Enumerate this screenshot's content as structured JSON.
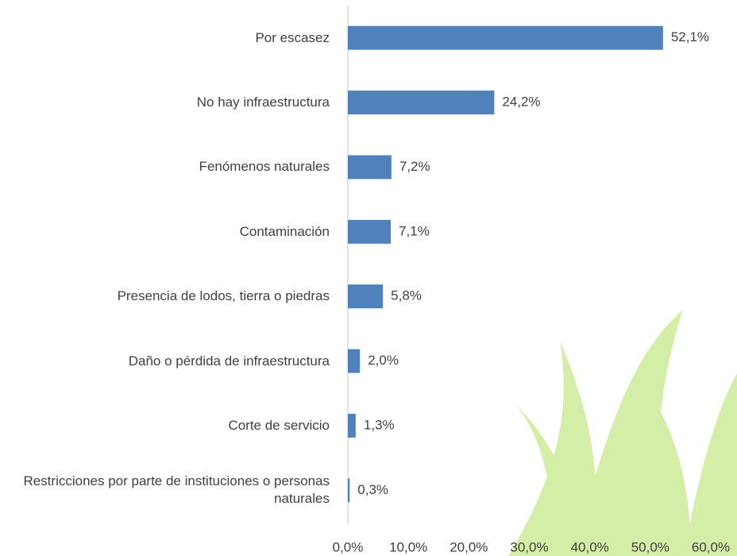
{
  "chart_data": {
    "type": "bar",
    "orientation": "horizontal",
    "categories": [
      "Por escasez",
      "No hay infraestructura",
      "Fenómenos naturales",
      "Contaminación",
      "Presencia de lodos, tierra o piedras",
      "Daño o pérdida de infraestructura",
      "Corte de servicio",
      "Restricciones por parte de instituciones o personas naturales"
    ],
    "values": [
      52.1,
      24.2,
      7.2,
      7.1,
      5.8,
      2.0,
      1.3,
      0.3
    ],
    "value_labels": [
      "52,1%",
      "24,2%",
      "7,2%",
      "7,1%",
      "5,8%",
      "2,0%",
      "1,3%",
      "0,3%"
    ],
    "color": "#4f81bd",
    "xlim": [
      0,
      60
    ],
    "xticks": [
      {
        "value": 0,
        "label": "0,0%"
      },
      {
        "value": 10,
        "label": "10,0%"
      },
      {
        "value": 20,
        "label": "20,0%"
      },
      {
        "value": 30,
        "label": "30,0%"
      },
      {
        "value": 40,
        "label": "40,0%"
      },
      {
        "value": 50,
        "label": "50,0%"
      },
      {
        "value": 60,
        "label": "60,0%"
      }
    ],
    "grid": false
  }
}
